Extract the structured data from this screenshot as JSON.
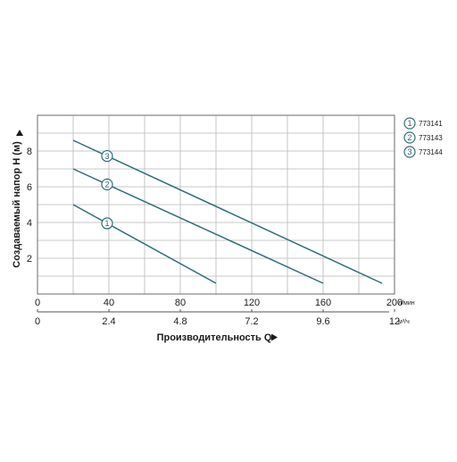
{
  "chart_data": {
    "type": "line",
    "ylabel": "Создаваемый напор H (м)",
    "xlabel": "Производительность Q",
    "x_units_primary": "л/мин",
    "x_units_secondary": "м³/ч",
    "xlim": [
      0,
      200
    ],
    "ylim": [
      0,
      10
    ],
    "x_ticks": [
      0,
      40,
      80,
      120,
      160,
      200
    ],
    "x_ticks_secondary": [
      "0",
      "2.4",
      "4.8",
      "7.2",
      "9.6",
      "12"
    ],
    "y_ticks": [
      2,
      4,
      6,
      8
    ],
    "grid": true,
    "legend_position": "right",
    "line_color": "#2e6e78",
    "series": [
      {
        "name": "773141",
        "marker": "1",
        "x": [
          20,
          100
        ],
        "y": [
          5.0,
          0.6
        ]
      },
      {
        "name": "773143",
        "marker": "2",
        "x": [
          20,
          160
        ],
        "y": [
          7.0,
          0.6
        ]
      },
      {
        "name": "773144",
        "marker": "3",
        "x": [
          20,
          193
        ],
        "y": [
          8.6,
          0.6
        ]
      }
    ]
  }
}
